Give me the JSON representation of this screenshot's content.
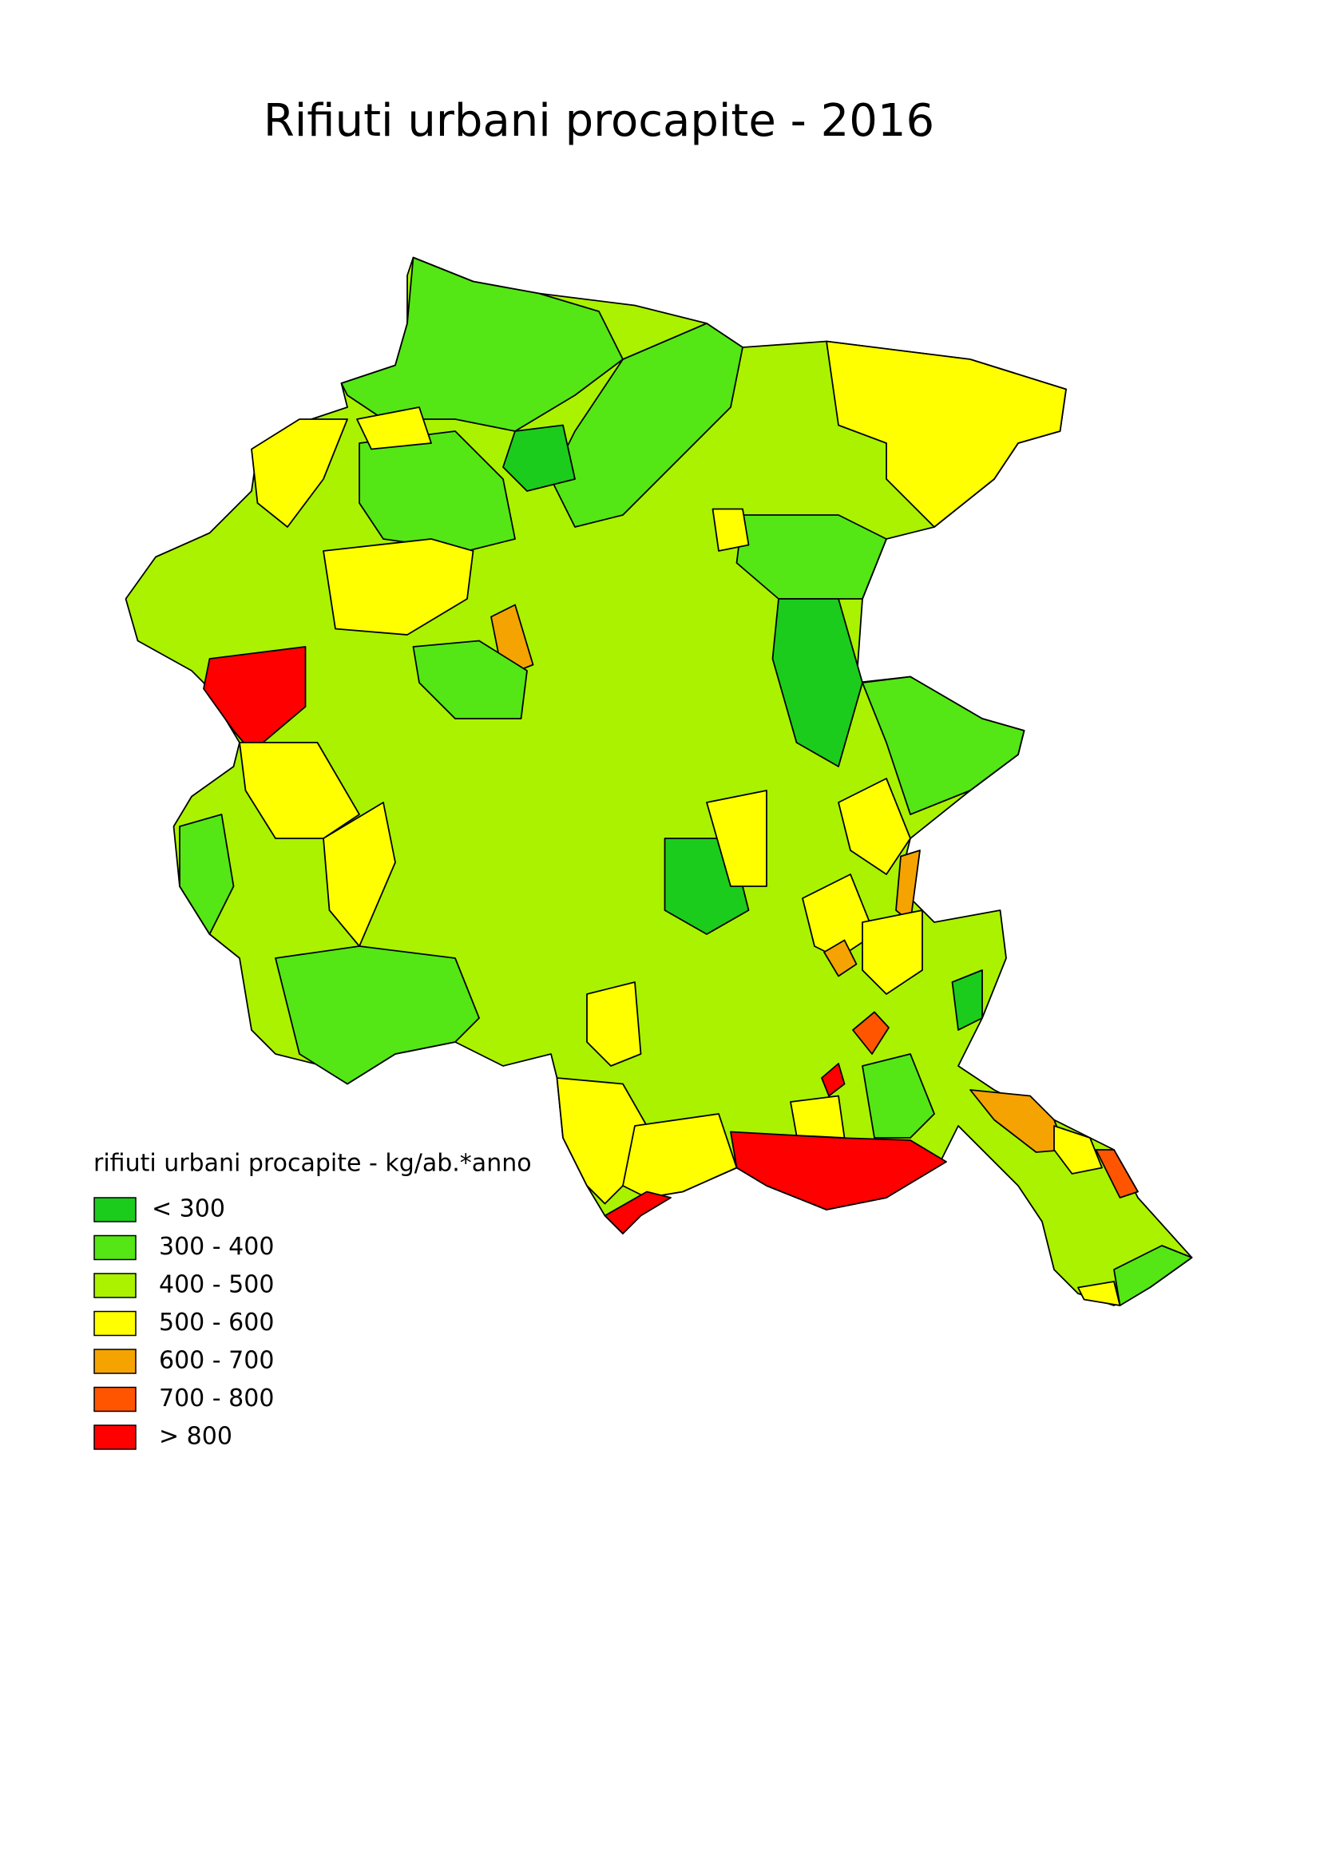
{
  "title": "Rifiuti urbani procapite - 2016",
  "legend": {
    "title": "rifiuti urbani procapite - kg/ab.*anno",
    "items": [
      {
        "label": "< 300",
        "color": "#1ccc1c"
      },
      {
        "label": "300 - 400",
        "color": "#55e615"
      },
      {
        "label": "400 - 500",
        "color": "#aaf200"
      },
      {
        "label": "500 - 600",
        "color": "#ffff00"
      },
      {
        "label": "600 - 700",
        "color": "#f5a300"
      },
      {
        "label": "700 - 800",
        "color": "#ff5500"
      },
      {
        "label": "> 800",
        "color": "#ff0000"
      }
    ]
  }
}
